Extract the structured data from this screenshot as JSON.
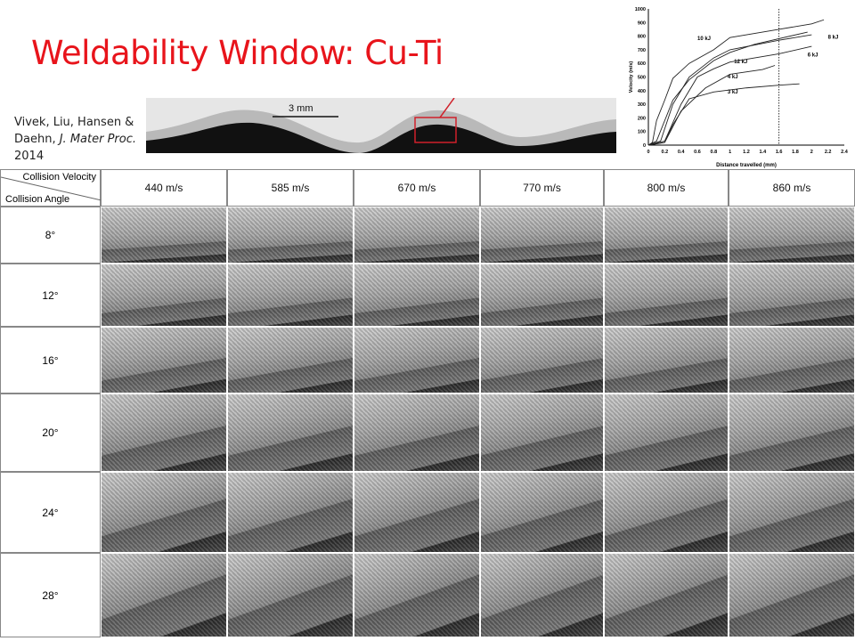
{
  "title": "Weldability Window: Cu-Ti",
  "citation": {
    "authors_line1": "Vivek, Liu, Hansen &",
    "authors_line2": "Daehn, ",
    "journal": "J. Mater Proc.",
    "year": "2014"
  },
  "wave_image": {
    "scale_label": "3 mm"
  },
  "table": {
    "corner_top": "Collision Velocity",
    "corner_bottom": "Collision Angle",
    "velocities": [
      "440 m/s",
      "585 m/s",
      "670 m/s",
      "770 m/s",
      "800 m/s",
      "860 m/s"
    ],
    "angles": [
      "8°",
      "12°",
      "16°",
      "20°",
      "24°",
      "28°"
    ]
  },
  "chart_data": {
    "type": "line",
    "title": "",
    "xlabel": "Distance travelled (mm)",
    "ylabel": "Velocity (m/s)",
    "xlim": [
      0,
      2.4
    ],
    "ylim": [
      0,
      1000
    ],
    "xticks": [
      "0",
      "0.2",
      "0.4",
      "0.6",
      "0.8",
      "1",
      "1.2",
      "1.4",
      "1.6",
      "1.8",
      "2",
      "2.2",
      "2.4"
    ],
    "yticks": [
      "0",
      "100",
      "200",
      "300",
      "400",
      "500",
      "600",
      "700",
      "800",
      "900",
      "1000"
    ],
    "vline_x": 1.6,
    "series": [
      {
        "name": "10 kJ",
        "x": [
          0,
          0.05,
          0.1,
          0.2,
          0.3,
          0.5,
          0.8,
          1,
          1.6,
          2,
          2.15
        ],
        "y": [
          0,
          20,
          180,
          330,
          490,
          600,
          700,
          790,
          850,
          890,
          920
        ]
      },
      {
        "name": "8 kJ",
        "x": [
          0,
          0.15,
          0.3,
          0.5,
          0.8,
          1,
          1.6,
          2
        ],
        "y": [
          0,
          30,
          300,
          500,
          640,
          700,
          770,
          810
        ]
      },
      {
        "name": "12 kJ",
        "x": [
          0,
          0.1,
          0.3,
          0.5,
          0.8,
          1,
          1.3,
          1.95
        ],
        "y": [
          0,
          30,
          330,
          480,
          620,
          680,
          740,
          830
        ]
      },
      {
        "name": "6 kJ",
        "x": [
          0,
          0.2,
          0.4,
          0.6,
          0.8,
          1,
          1.6,
          2
        ],
        "y": [
          0,
          30,
          300,
          500,
          560,
          610,
          670,
          725
        ]
      },
      {
        "name": "4 kJ",
        "x": [
          0,
          0.2,
          0.4,
          0.7,
          1,
          1.4,
          1.55
        ],
        "y": [
          0,
          20,
          250,
          420,
          520,
          555,
          585
        ]
      },
      {
        "name": "3 kJ",
        "x": [
          0,
          0.2,
          0.3,
          0.5,
          0.8,
          1.2,
          1.6,
          1.85
        ],
        "y": [
          0,
          20,
          150,
          340,
          390,
          420,
          440,
          450
        ]
      }
    ]
  }
}
